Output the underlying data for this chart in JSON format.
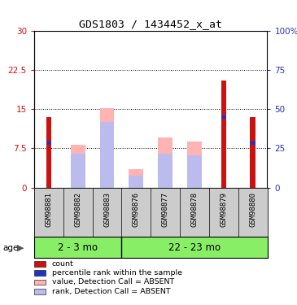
{
  "title": "GDS1803 / 1434452_x_at",
  "samples": [
    "GSM98881",
    "GSM98882",
    "GSM98883",
    "GSM98876",
    "GSM98877",
    "GSM98878",
    "GSM98879",
    "GSM98880"
  ],
  "group_labels": [
    "2 - 3 mo",
    "22 - 23 mo"
  ],
  "group_boundary": 3,
  "red_count": [
    13.5,
    0,
    0,
    0,
    0,
    0,
    20.5,
    13.5
  ],
  "blue_rank": [
    8.5,
    0,
    0,
    0,
    0,
    0,
    13.5,
    8.5
  ],
  "pink_value": [
    0,
    8.2,
    15.2,
    3.5,
    9.5,
    8.8,
    0,
    0
  ],
  "lavender_rank": [
    0,
    6.5,
    12.5,
    2.2,
    6.5,
    6.2,
    0,
    0
  ],
  "ylim_left": [
    0,
    30
  ],
  "ylim_right": [
    0,
    100
  ],
  "yticks_left": [
    0,
    7.5,
    15,
    22.5,
    30
  ],
  "yticks_right": [
    0,
    25,
    50,
    75,
    100
  ],
  "ytick_labels_left": [
    "0",
    "7.5",
    "15",
    "22.5",
    "30"
  ],
  "ytick_labels_right": [
    "0",
    "25",
    "50",
    "75",
    "100%"
  ],
  "color_red": "#cc1111",
  "color_blue": "#2233bb",
  "color_pink": "#ffb3b3",
  "color_lavender": "#bbbbee",
  "color_green": "#88ee66",
  "color_label_bg": "#cccccc",
  "wide_bar_width": 0.5,
  "narrow_bar_width": 0.18,
  "legend_items": [
    {
      "color": "#cc1111",
      "label": "count"
    },
    {
      "color": "#2233bb",
      "label": "percentile rank within the sample"
    },
    {
      "color": "#ffb3b3",
      "label": "value, Detection Call = ABSENT"
    },
    {
      "color": "#bbbbee",
      "label": "rank, Detection Call = ABSENT"
    }
  ],
  "figsize": [
    3.65,
    3.75
  ],
  "dpi": 100
}
